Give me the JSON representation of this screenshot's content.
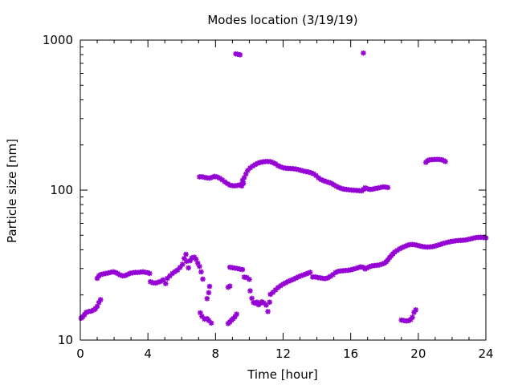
{
  "chart_data": {
    "type": "scatter",
    "title": "Modes location (3/19/19)",
    "xlabel": "Time [hour]",
    "ylabel": "Particle size [nm]",
    "xlim": [
      0,
      24
    ],
    "ylim": [
      10,
      1000
    ],
    "y_scale": "log",
    "grid": false,
    "legend": "none",
    "x_ticks": [
      0,
      4,
      8,
      12,
      16,
      20,
      24
    ],
    "x_tick_labels": [
      "0",
      "4",
      "8",
      "12",
      "16",
      "20",
      "24"
    ],
    "y_ticks": [
      10,
      100,
      1000
    ],
    "y_tick_labels": [
      "10",
      "100",
      "1000"
    ],
    "marker_color": "#9400d3",
    "series": [
      {
        "points": [
          [
            0.05,
            14.0
          ],
          [
            0.15,
            14.3
          ],
          [
            0.25,
            14.8
          ],
          [
            0.35,
            15.3
          ],
          [
            0.5,
            15.5
          ],
          [
            0.65,
            15.6
          ],
          [
            0.8,
            15.9
          ],
          [
            0.9,
            16.2
          ],
          [
            1.0,
            16.8
          ],
          [
            1.1,
            17.8
          ],
          [
            1.2,
            18.6
          ],
          [
            1.0,
            25.8
          ],
          [
            1.1,
            26.8
          ],
          [
            1.2,
            27.3
          ],
          [
            1.35,
            27.6
          ],
          [
            1.5,
            27.8
          ],
          [
            1.65,
            28.0
          ],
          [
            1.8,
            28.3
          ],
          [
            1.95,
            28.5
          ],
          [
            2.1,
            28.2
          ],
          [
            2.2,
            27.8
          ],
          [
            2.35,
            27.2
          ],
          [
            2.5,
            26.8
          ],
          [
            2.65,
            26.9
          ],
          [
            2.8,
            27.4
          ],
          [
            2.95,
            27.9
          ],
          [
            3.1,
            28.1
          ],
          [
            3.25,
            28.3
          ],
          [
            3.4,
            28.2
          ],
          [
            3.55,
            28.4
          ],
          [
            3.7,
            28.5
          ],
          [
            3.85,
            28.3
          ],
          [
            4.0,
            28.1
          ],
          [
            4.1,
            27.8
          ],
          [
            4.15,
            24.5
          ],
          [
            4.3,
            24.1
          ],
          [
            4.45,
            24.0
          ],
          [
            4.6,
            24.3
          ],
          [
            4.75,
            24.6
          ],
          [
            4.9,
            25.2
          ],
          [
            5.05,
            23.8
          ],
          [
            5.15,
            25.8
          ],
          [
            5.3,
            26.8
          ],
          [
            5.45,
            27.8
          ],
          [
            5.6,
            28.6
          ],
          [
            5.75,
            29.3
          ],
          [
            5.9,
            30.5
          ],
          [
            6.05,
            32.0
          ],
          [
            6.15,
            35.0
          ],
          [
            6.25,
            37.3
          ],
          [
            6.3,
            33.5
          ],
          [
            6.4,
            30.3
          ],
          [
            6.5,
            33.8
          ],
          [
            6.6,
            35.3
          ],
          [
            6.75,
            35.7
          ],
          [
            6.85,
            34.5
          ],
          [
            6.95,
            32.6
          ],
          [
            7.05,
            31.0
          ],
          [
            7.15,
            28.5
          ],
          [
            7.25,
            25.5
          ],
          [
            7.1,
            15.2
          ],
          [
            7.2,
            14.4
          ],
          [
            7.35,
            13.8
          ],
          [
            7.5,
            13.9
          ],
          [
            7.6,
            13.5
          ],
          [
            7.75,
            13.0
          ],
          [
            7.5,
            18.9
          ],
          [
            7.6,
            20.7
          ],
          [
            7.65,
            22.8
          ],
          [
            8.75,
            12.9
          ],
          [
            8.85,
            13.2
          ],
          [
            8.95,
            13.6
          ],
          [
            9.05,
            13.9
          ],
          [
            9.15,
            14.3
          ],
          [
            9.25,
            14.9
          ],
          [
            8.75,
            22.5
          ],
          [
            8.85,
            22.9
          ],
          [
            8.85,
            30.6
          ],
          [
            9.0,
            30.4
          ],
          [
            9.15,
            30.2
          ],
          [
            9.3,
            30.0
          ],
          [
            9.45,
            29.7
          ],
          [
            9.6,
            29.5
          ],
          [
            9.7,
            26.3
          ],
          [
            9.85,
            26.1
          ],
          [
            10.0,
            25.4
          ],
          [
            10.05,
            21.3
          ],
          [
            10.15,
            19.0
          ],
          [
            10.25,
            17.8
          ],
          [
            10.35,
            17.6
          ],
          [
            10.45,
            17.9
          ],
          [
            10.55,
            17.2
          ],
          [
            10.65,
            17.6
          ],
          [
            10.75,
            18.0
          ],
          [
            10.85,
            17.7
          ],
          [
            11.0,
            17.1
          ],
          [
            11.1,
            15.5
          ],
          [
            11.2,
            17.9
          ],
          [
            11.25,
            20.2
          ],
          [
            11.4,
            20.8
          ],
          [
            11.55,
            21.6
          ],
          [
            11.7,
            22.4
          ],
          [
            11.85,
            23.0
          ],
          [
            12.0,
            23.6
          ],
          [
            12.15,
            24.1
          ],
          [
            12.3,
            24.6
          ],
          [
            12.45,
            25.0
          ],
          [
            12.6,
            25.4
          ],
          [
            12.75,
            25.9
          ],
          [
            12.9,
            26.4
          ],
          [
            13.05,
            26.8
          ],
          [
            13.2,
            27.2
          ],
          [
            13.35,
            27.6
          ],
          [
            13.5,
            28.0
          ],
          [
            13.6,
            28.3
          ],
          [
            13.75,
            26.3
          ],
          [
            13.9,
            26.4
          ],
          [
            14.05,
            26.1
          ],
          [
            14.2,
            26.0
          ],
          [
            14.35,
            25.8
          ],
          [
            14.5,
            25.7
          ],
          [
            14.65,
            26.0
          ],
          [
            14.8,
            26.6
          ],
          [
            14.95,
            27.3
          ],
          [
            15.1,
            28.2
          ],
          [
            15.25,
            28.7
          ],
          [
            15.4,
            28.9
          ],
          [
            15.55,
            29.0
          ],
          [
            15.7,
            29.1
          ],
          [
            15.85,
            29.2
          ],
          [
            16.0,
            29.4
          ],
          [
            16.15,
            29.7
          ],
          [
            16.3,
            30.0
          ],
          [
            16.45,
            30.4
          ],
          [
            16.6,
            30.8
          ],
          [
            16.75,
            30.5
          ],
          [
            16.85,
            29.8
          ],
          [
            16.95,
            30.2
          ],
          [
            17.1,
            30.8
          ],
          [
            17.25,
            31.2
          ],
          [
            17.4,
            31.4
          ],
          [
            17.55,
            31.5
          ],
          [
            17.7,
            31.7
          ],
          [
            17.85,
            32.1
          ],
          [
            18.0,
            32.6
          ],
          [
            18.1,
            33.3
          ],
          [
            18.2,
            34.2
          ],
          [
            18.3,
            35.5
          ],
          [
            18.4,
            36.5
          ],
          [
            18.5,
            37.6
          ],
          [
            18.6,
            38.6
          ],
          [
            18.75,
            39.6
          ],
          [
            18.9,
            40.6
          ],
          [
            19.05,
            41.4
          ],
          [
            19.2,
            42.1
          ],
          [
            19.35,
            42.8
          ],
          [
            19.5,
            43.3
          ],
          [
            19.65,
            43.4
          ],
          [
            19.8,
            43.2
          ],
          [
            19.95,
            42.8
          ],
          [
            20.1,
            42.4
          ],
          [
            20.25,
            42.0
          ],
          [
            20.4,
            41.8
          ],
          [
            20.55,
            41.7
          ],
          [
            20.7,
            41.8
          ],
          [
            20.85,
            42.0
          ],
          [
            21.0,
            42.4
          ],
          [
            21.15,
            42.9
          ],
          [
            21.3,
            43.4
          ],
          [
            21.45,
            44.0
          ],
          [
            21.6,
            44.5
          ],
          [
            21.75,
            44.9
          ],
          [
            21.9,
            45.3
          ],
          [
            22.05,
            45.6
          ],
          [
            22.2,
            45.9
          ],
          [
            22.35,
            46.1
          ],
          [
            22.5,
            46.2
          ],
          [
            22.65,
            46.3
          ],
          [
            22.8,
            46.5
          ],
          [
            22.95,
            46.9
          ],
          [
            23.1,
            47.3
          ],
          [
            23.25,
            47.8
          ],
          [
            23.4,
            48.2
          ],
          [
            23.55,
            48.4
          ],
          [
            23.7,
            48.5
          ],
          [
            23.85,
            48.3
          ],
          [
            24.0,
            48.0
          ],
          [
            19.0,
            13.6
          ],
          [
            19.15,
            13.5
          ],
          [
            19.3,
            13.4
          ],
          [
            19.45,
            13.5
          ],
          [
            19.55,
            13.7
          ],
          [
            19.65,
            14.2
          ],
          [
            19.75,
            15.3
          ],
          [
            19.85,
            15.9
          ],
          [
            7.05,
            122.5
          ],
          [
            7.2,
            122.8
          ],
          [
            7.35,
            121.5
          ],
          [
            7.5,
            120.8
          ],
          [
            7.65,
            120.2
          ],
          [
            7.8,
            121.8
          ],
          [
            7.95,
            123.5
          ],
          [
            8.1,
            122.3
          ],
          [
            8.25,
            120.0
          ],
          [
            8.4,
            117.0
          ],
          [
            8.55,
            113.5
          ],
          [
            8.7,
            110.5
          ],
          [
            8.85,
            108.0
          ],
          [
            9.0,
            107.0
          ],
          [
            9.15,
            106.8
          ],
          [
            9.3,
            107.5
          ],
          [
            9.45,
            108.5
          ],
          [
            9.55,
            106.5
          ],
          [
            9.65,
            111.0
          ],
          [
            9.6,
            116.0
          ],
          [
            9.7,
            121.0
          ],
          [
            9.8,
            128.0
          ],
          [
            9.9,
            135.0
          ],
          [
            10.05,
            140.5
          ],
          [
            10.2,
            144.5
          ],
          [
            10.35,
            148.0
          ],
          [
            10.5,
            151.0
          ],
          [
            10.65,
            153.0
          ],
          [
            10.8,
            154.2
          ],
          [
            10.95,
            155.0
          ],
          [
            11.1,
            155.3
          ],
          [
            11.25,
            154.5
          ],
          [
            11.4,
            152.5
          ],
          [
            11.55,
            149.5
          ],
          [
            11.7,
            145.5
          ],
          [
            11.85,
            143.0
          ],
          [
            12.0,
            141.0
          ],
          [
            12.15,
            140.0
          ],
          [
            12.3,
            139.5
          ],
          [
            12.45,
            139.2
          ],
          [
            12.6,
            138.8
          ],
          [
            12.75,
            138.2
          ],
          [
            12.9,
            137.0
          ],
          [
            13.05,
            135.5
          ],
          [
            13.2,
            134.0
          ],
          [
            13.35,
            133.0
          ],
          [
            13.5,
            132.0
          ],
          [
            13.65,
            130.5
          ],
          [
            13.8,
            128.5
          ],
          [
            13.95,
            125.0
          ],
          [
            14.1,
            120.5
          ],
          [
            14.25,
            117.5
          ],
          [
            14.4,
            115.5
          ],
          [
            14.55,
            114.0
          ],
          [
            14.7,
            112.5
          ],
          [
            14.85,
            111.0
          ],
          [
            15.0,
            108.5
          ],
          [
            15.15,
            106.0
          ],
          [
            15.3,
            104.0
          ],
          [
            15.45,
            102.5
          ],
          [
            15.6,
            101.5
          ],
          [
            15.75,
            101.0
          ],
          [
            15.9,
            100.5
          ],
          [
            16.05,
            100.0
          ],
          [
            16.2,
            99.8
          ],
          [
            16.35,
            99.5
          ],
          [
            16.5,
            99.2
          ],
          [
            16.65,
            98.8
          ],
          [
            16.75,
            101.0
          ],
          [
            16.85,
            103.5
          ],
          [
            17.0,
            102.0
          ],
          [
            17.15,
            101.0
          ],
          [
            17.3,
            101.5
          ],
          [
            17.45,
            102.5
          ],
          [
            17.6,
            103.0
          ],
          [
            17.75,
            104.0
          ],
          [
            17.9,
            105.0
          ],
          [
            18.05,
            104.8
          ],
          [
            18.2,
            104.0
          ],
          [
            20.45,
            153.0
          ],
          [
            20.55,
            157.0
          ],
          [
            20.65,
            159.0
          ],
          [
            20.8,
            159.5
          ],
          [
            20.95,
            160.0
          ],
          [
            21.1,
            160.2
          ],
          [
            21.25,
            160.0
          ],
          [
            21.4,
            159.0
          ],
          [
            21.5,
            157.5
          ],
          [
            21.6,
            155.0
          ],
          [
            9.2,
            810.0
          ],
          [
            9.3,
            805.0
          ],
          [
            9.45,
            798.0
          ],
          [
            16.75,
            820.0
          ]
        ]
      }
    ]
  }
}
